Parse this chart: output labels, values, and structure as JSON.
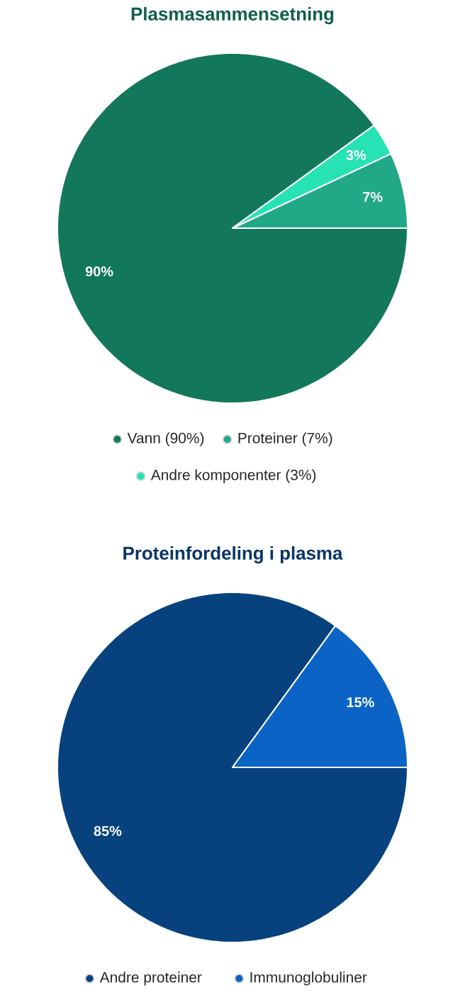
{
  "chart_data": [
    {
      "type": "pie",
      "title": "Plasmasammensetning",
      "categories": [
        "Vann (90%)",
        "Proteiner (7%)",
        "Andre komponenter (3%)"
      ],
      "values": [
        90,
        7,
        3
      ],
      "colors": [
        "#13775c",
        "#20a887",
        "#27e2b2"
      ],
      "value_labels": [
        "90%",
        "7%",
        "3%"
      ],
      "legend": "bottom"
    },
    {
      "type": "pie",
      "title": "Proteinfordeling i plasma",
      "categories": [
        "Andre proteiner",
        "Immunoglobuliner"
      ],
      "values": [
        85,
        15
      ],
      "colors": [
        "#07427f",
        "#0b63c5"
      ],
      "value_labels": [
        "85%",
        "15%"
      ],
      "legend": "bottom"
    }
  ]
}
